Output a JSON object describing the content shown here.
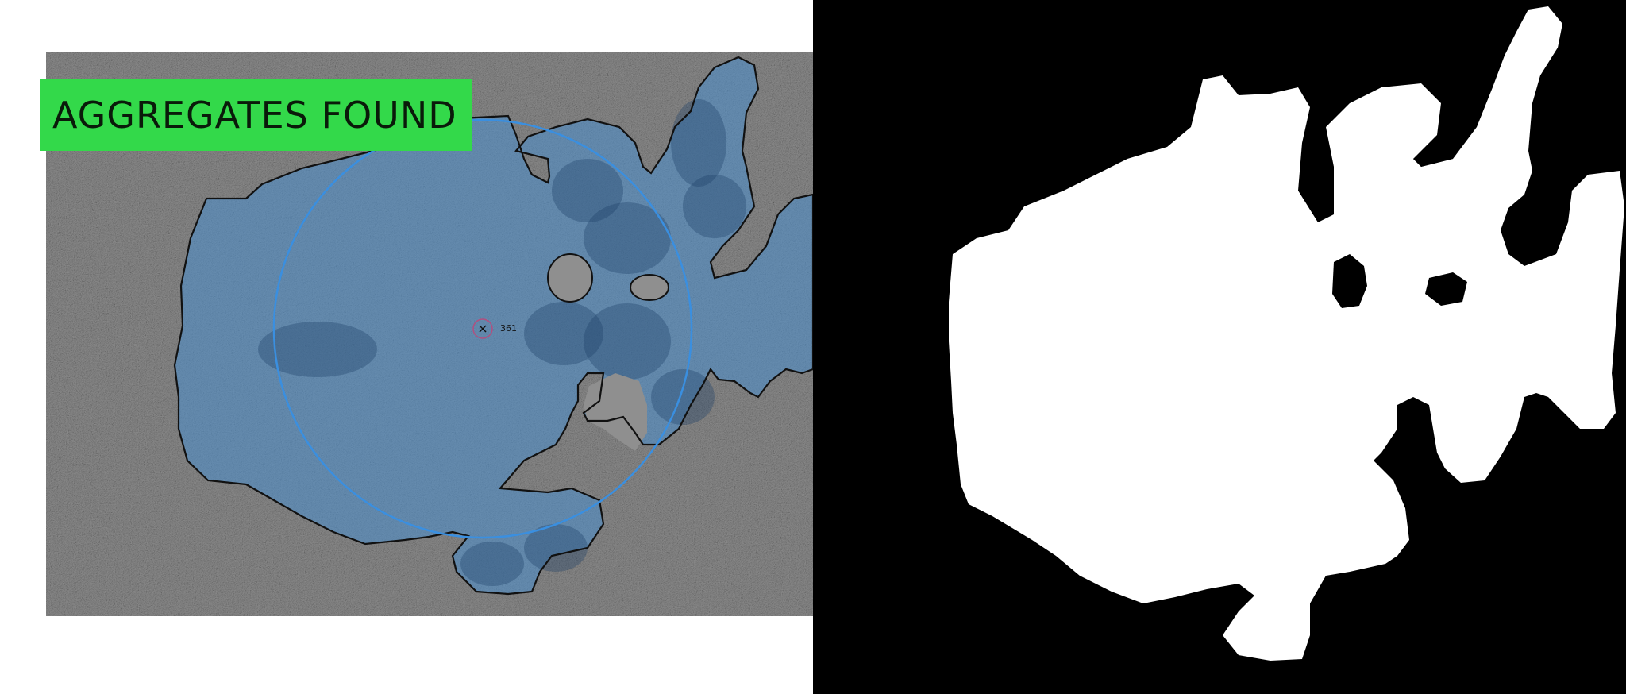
{
  "detection": {
    "banner_text": "AGGREGATES FOUND",
    "banner_color": "#33d94a",
    "marker_label": "361"
  },
  "colors": {
    "overlay": "#4a90d0",
    "outline": "#111111",
    "circle": "#3a8fe0",
    "marker": "#b05080",
    "mask_fg": "#ffffff",
    "mask_bg": "#000000"
  }
}
